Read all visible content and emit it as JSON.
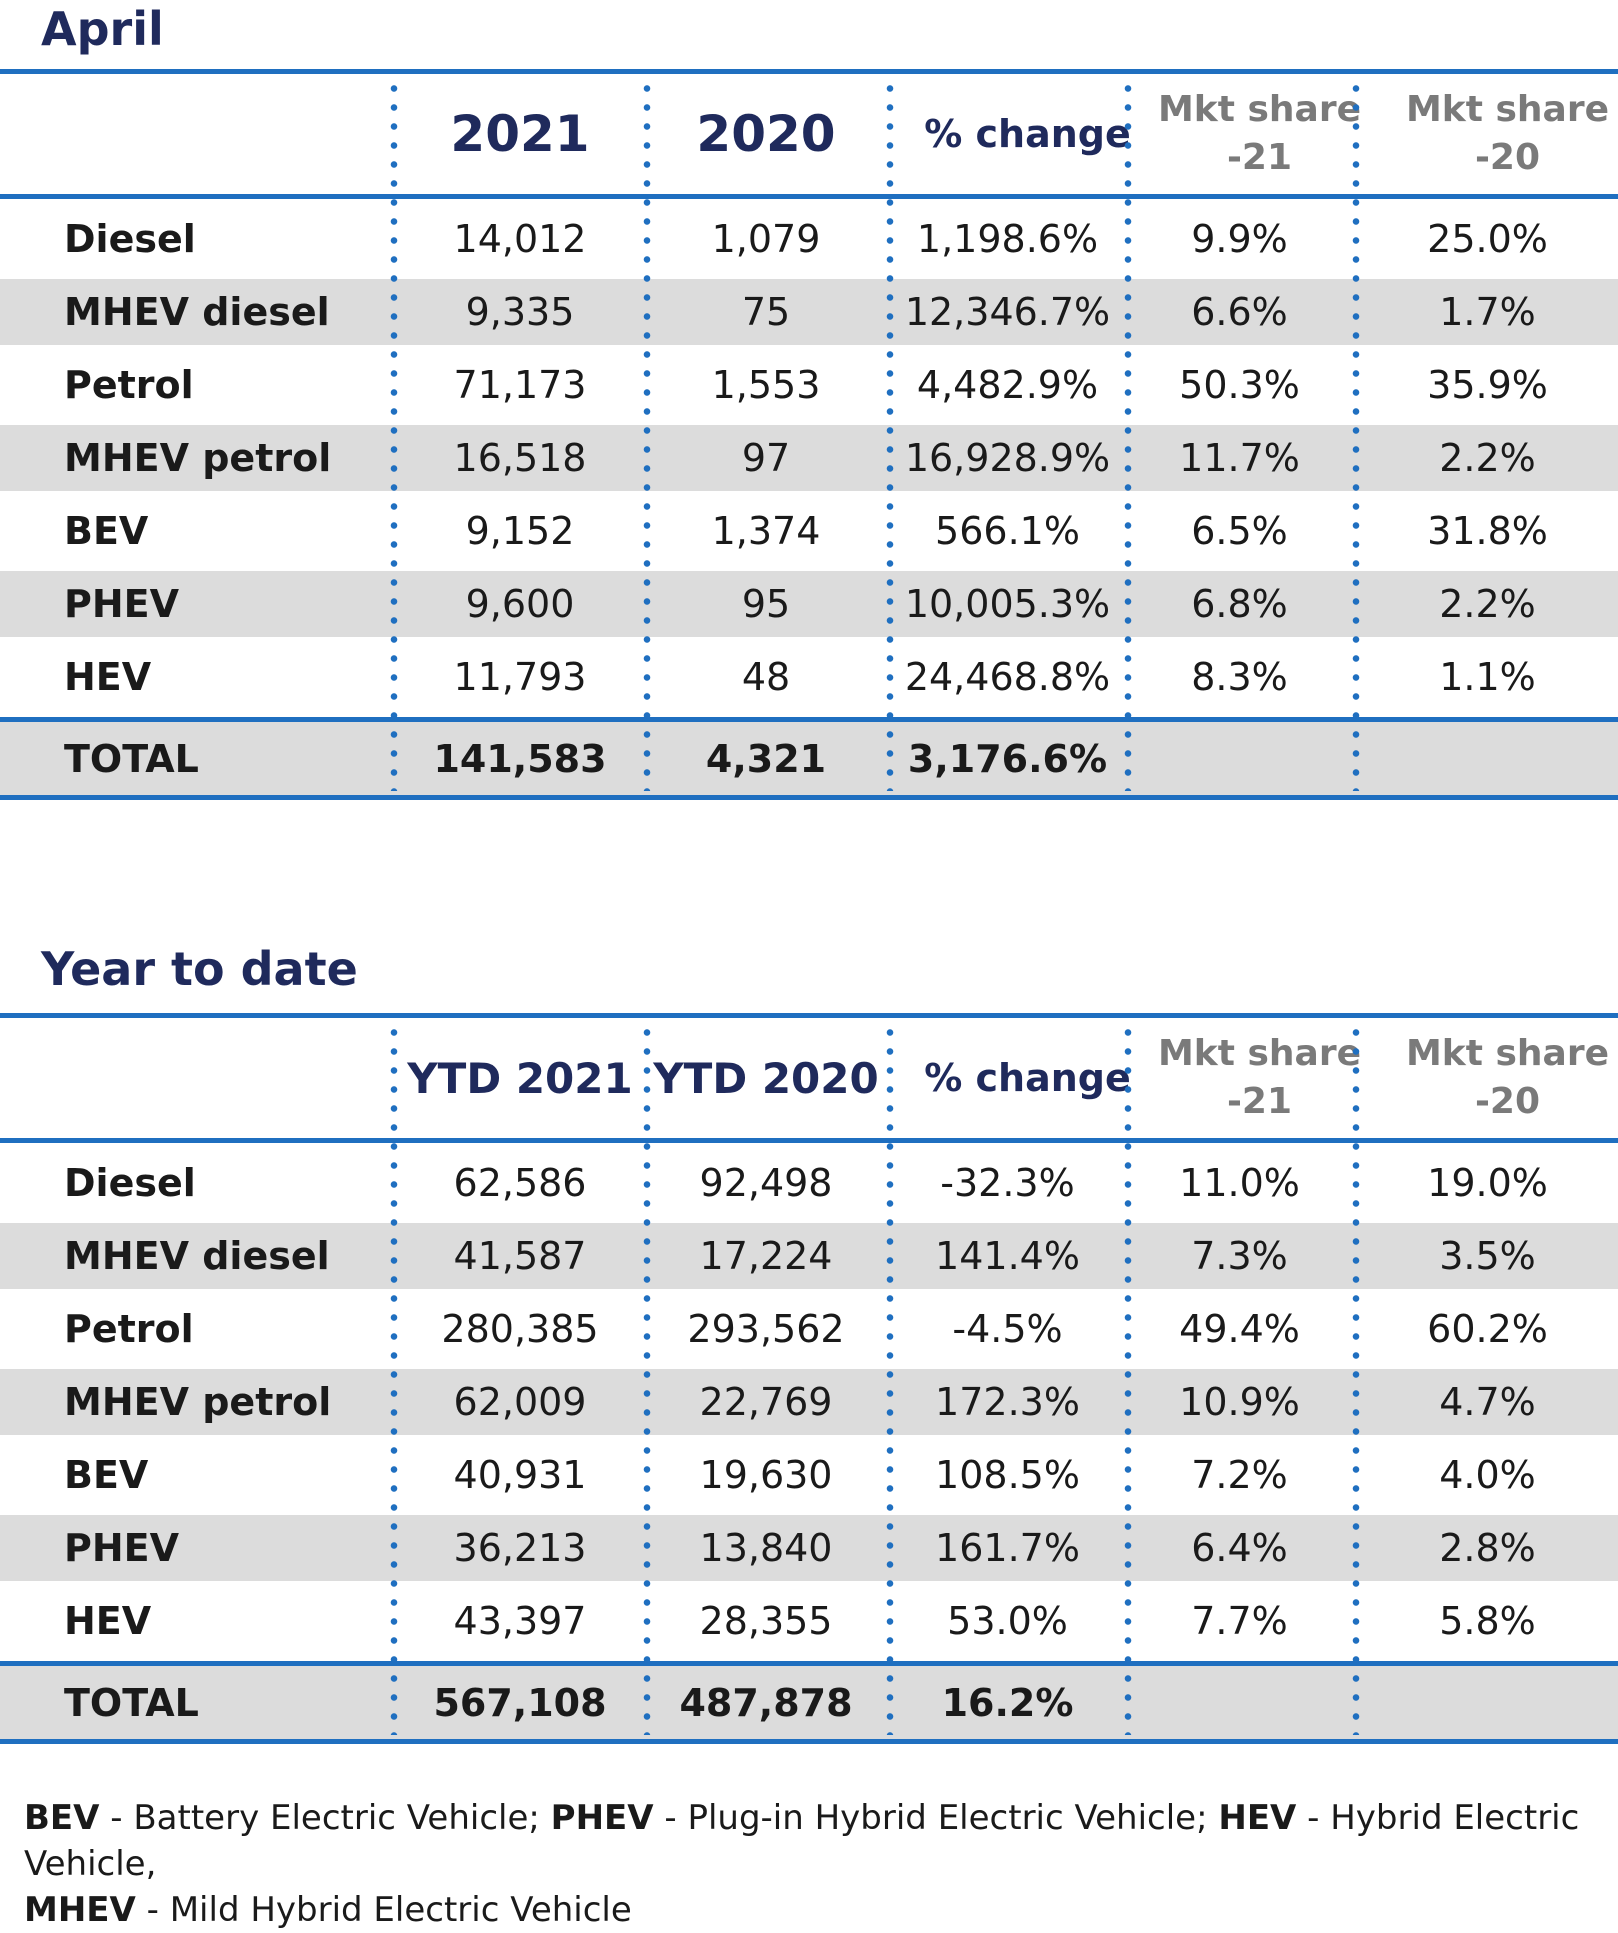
{
  "sections": [
    {
      "title": "April",
      "headers": [
        "2021",
        "2020",
        "% change",
        "Mkt share -21",
        "Mkt share -20"
      ],
      "rows": [
        {
          "label": "Diesel",
          "values": [
            "14,012",
            "1,079",
            "1,198.6%",
            "9.9%",
            "25.0%"
          ]
        },
        {
          "label": "MHEV diesel",
          "values": [
            "9,335",
            "75",
            "12,346.7%",
            "6.6%",
            "1.7%"
          ]
        },
        {
          "label": "Petrol",
          "values": [
            "71,173",
            "1,553",
            "4,482.9%",
            "50.3%",
            "35.9%"
          ]
        },
        {
          "label": "MHEV petrol",
          "values": [
            "16,518",
            "97",
            "16,928.9%",
            "11.7%",
            "2.2%"
          ]
        },
        {
          "label": "BEV",
          "values": [
            "9,152",
            "1,374",
            "566.1%",
            "6.5%",
            "31.8%"
          ]
        },
        {
          "label": "PHEV",
          "values": [
            "9,600",
            "95",
            "10,005.3%",
            "6.8%",
            "2.2%"
          ]
        },
        {
          "label": "HEV",
          "values": [
            "11,793",
            "48",
            "24,468.8%",
            "8.3%",
            "1.1%"
          ]
        }
      ],
      "total": {
        "label": "TOTAL",
        "values": [
          "141,583",
          "4,321",
          "3,176.6%",
          "",
          ""
        ]
      }
    },
    {
      "title": "Year to date",
      "headers": [
        "YTD 2021",
        "YTD 2020",
        "% change",
        "Mkt share -21",
        "Mkt share -20"
      ],
      "rows": [
        {
          "label": "Diesel",
          "values": [
            "62,586",
            "92,498",
            "-32.3%",
            "11.0%",
            "19.0%"
          ]
        },
        {
          "label": "MHEV diesel",
          "values": [
            "41,587",
            "17,224",
            "141.4%",
            "7.3%",
            "3.5%"
          ]
        },
        {
          "label": "Petrol",
          "values": [
            "280,385",
            "293,562",
            "-4.5%",
            "49.4%",
            "60.2%"
          ]
        },
        {
          "label": "MHEV petrol",
          "values": [
            "62,009",
            "22,769",
            "172.3%",
            "10.9%",
            "4.7%"
          ]
        },
        {
          "label": "BEV",
          "values": [
            "40,931",
            "19,630",
            "108.5%",
            "7.2%",
            "4.0%"
          ]
        },
        {
          "label": "PHEV",
          "values": [
            "36,213",
            "13,840",
            "161.7%",
            "6.4%",
            "2.8%"
          ]
        },
        {
          "label": "HEV",
          "values": [
            "43,397",
            "28,355",
            "53.0%",
            "7.7%",
            "5.8%"
          ]
        }
      ],
      "total": {
        "label": "TOTAL",
        "values": [
          "567,108",
          "487,878",
          "16.2%",
          "",
          ""
        ]
      }
    }
  ],
  "footnote": {
    "bev_abbr": "BEV",
    "bev_text": " - Battery Electric Vehicle; ",
    "phev_abbr": "PHEV",
    "phev_text": " - Plug-in Hybrid Electric Vehicle; ",
    "hev_abbr": "HEV",
    "hev_text": " - Hybrid Electric Vehicle,",
    "mhev_abbr": "MHEV",
    "mhev_text": " - Mild Hybrid Electric Vehicle"
  },
  "colors": {
    "title": "#1f2a5c",
    "rule": "#1f6fc0",
    "row_shade": "#dcdcdc",
    "mkt_header": "#7a7a7a"
  }
}
